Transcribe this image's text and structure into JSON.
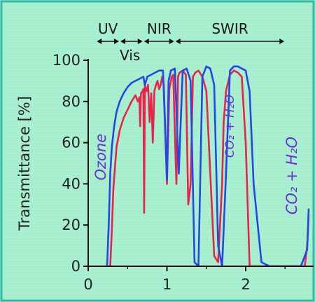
{
  "colors": {
    "background": "#a8f0cf",
    "border": "#35b9a6",
    "axis": "#111111",
    "series_red": "#e8234c",
    "series_blue": "#2448e8",
    "annotation": "#6a2fd0"
  },
  "chart_data": {
    "type": "line",
    "ylabel": "Transmittance [%]",
    "xlabel": "",
    "xlim": [
      0,
      2.8
    ],
    "ylim": [
      0,
      100
    ],
    "x_ticks": [
      0,
      1,
      2
    ],
    "y_ticks": [
      0,
      20,
      40,
      60,
      80,
      100
    ],
    "grid": false,
    "bands": [
      {
        "label": "UV",
        "x_from": 0.1,
        "x_to": 0.4
      },
      {
        "label": "Vis",
        "x_from": 0.4,
        "x_to": 0.7
      },
      {
        "label": "NIR",
        "x_from": 0.7,
        "x_to": 1.1
      },
      {
        "label": "SWIR",
        "x_from": 1.1,
        "x_to": 2.5
      }
    ],
    "annotations": [
      {
        "text": "Ozone",
        "x": 0.22,
        "y": 53
      },
      {
        "text": "CO₂ + H₂O",
        "x": 1.85,
        "y": 68
      },
      {
        "text": "CO₂ + H₂O",
        "x": 2.65,
        "y": 44
      }
    ],
    "series": [
      {
        "color": "red",
        "x": [
          0.28,
          0.3,
          0.32,
          0.36,
          0.4,
          0.45,
          0.5,
          0.55,
          0.6,
          0.63,
          0.65,
          0.66,
          0.67,
          0.69,
          0.7,
          0.71,
          0.72,
          0.74,
          0.76,
          0.78,
          0.8,
          0.82,
          0.84,
          0.86,
          0.88,
          0.9,
          0.92,
          0.94,
          0.96,
          1.0,
          1.03,
          1.06,
          1.08,
          1.1,
          1.12,
          1.14,
          1.16,
          1.2,
          1.24,
          1.27,
          1.3,
          1.33,
          1.36,
          1.4,
          1.45,
          1.5,
          1.55,
          1.6,
          1.65,
          1.7,
          1.72,
          1.75,
          1.8,
          1.85,
          1.9,
          1.95,
          2.0,
          2.05,
          2.1,
          2.15,
          2.2,
          2.25,
          2.3,
          2.35,
          2.4,
          2.45,
          2.5,
          2.55,
          2.6,
          2.65,
          2.7,
          2.75,
          2.78,
          2.8
        ],
        "y": [
          0,
          18,
          38,
          58,
          66,
          72,
          76,
          80,
          83,
          80,
          82,
          68,
          84,
          85,
          86,
          26,
          88,
          85,
          88,
          70,
          84,
          60,
          85,
          88,
          90,
          86,
          88,
          92,
          88,
          40,
          86,
          92,
          93,
          65,
          40,
          92,
          94,
          95,
          93,
          30,
          40,
          92,
          94,
          95,
          92,
          85,
          45,
          5,
          2,
          40,
          70,
          85,
          93,
          95,
          94,
          92,
          60,
          0,
          0,
          0,
          0,
          0,
          0,
          0,
          0,
          0,
          0,
          0,
          0,
          0,
          0,
          0,
          10,
          25
        ]
      },
      {
        "color": "blue",
        "x": [
          0.24,
          0.26,
          0.28,
          0.3,
          0.33,
          0.36,
          0.4,
          0.45,
          0.5,
          0.55,
          0.6,
          0.65,
          0.7,
          0.72,
          0.75,
          0.8,
          0.85,
          0.9,
          0.95,
          1.0,
          1.02,
          1.05,
          1.1,
          1.15,
          1.2,
          1.25,
          1.3,
          1.35,
          1.4,
          1.45,
          1.5,
          1.55,
          1.6,
          1.65,
          1.7,
          1.75,
          1.8,
          1.85,
          1.9,
          1.95,
          2.0,
          2.05,
          2.1,
          2.2,
          2.3,
          2.4,
          2.5,
          2.6,
          2.7,
          2.78,
          2.8
        ],
        "y": [
          0,
          20,
          45,
          58,
          68,
          75,
          80,
          84,
          87,
          89,
          90,
          91,
          92,
          88,
          92,
          93,
          94,
          95,
          95,
          42,
          90,
          95,
          96,
          45,
          95,
          96,
          90,
          2,
          0,
          92,
          97,
          96,
          88,
          10,
          0,
          45,
          95,
          97,
          97,
          96,
          95,
          85,
          40,
          2,
          0,
          0,
          0,
          0,
          0,
          8,
          28
        ]
      }
    ]
  }
}
